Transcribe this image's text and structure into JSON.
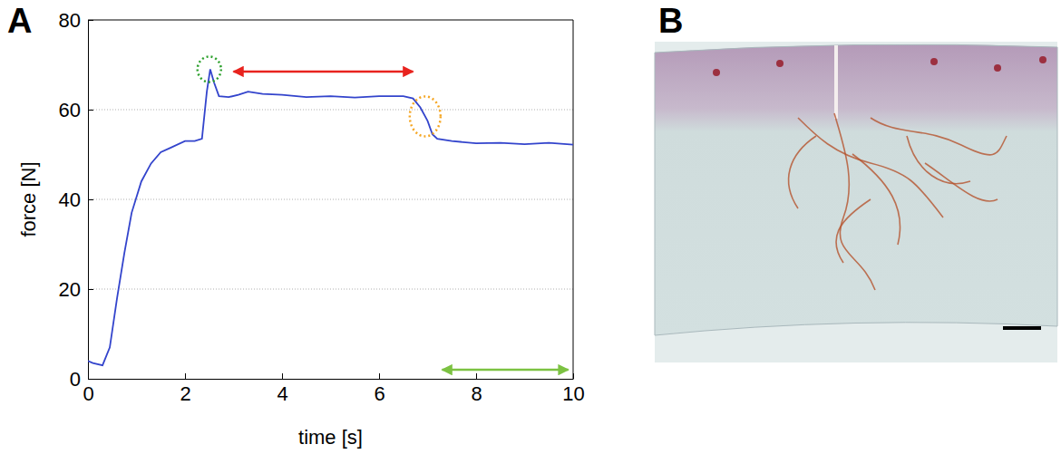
{
  "chart_data": {
    "type": "line",
    "x_label": "time [s]",
    "y_label": "force [N]",
    "x": [
      0,
      0.1,
      0.3,
      0.45,
      0.6,
      0.75,
      0.9,
      1.1,
      1.3,
      1.5,
      1.7,
      2.0,
      2.2,
      2.35,
      2.45,
      2.52,
      2.6,
      2.7,
      2.9,
      3.1,
      3.3,
      3.6,
      4.0,
      4.5,
      5.0,
      5.5,
      6.0,
      6.5,
      6.7,
      6.85,
      7.0,
      7.1,
      7.2,
      7.5,
      8.0,
      8.5,
      9.0,
      9.5,
      10.0
    ],
    "values": [
      4,
      3.5,
      3,
      7,
      18,
      28,
      37,
      44,
      48,
      50.5,
      51.5,
      53,
      53,
      53.5,
      64,
      69,
      66,
      63,
      62.8,
      63.3,
      64,
      63.5,
      63.3,
      62.8,
      63,
      62.7,
      63,
      63,
      62.5,
      60.5,
      57.5,
      54.5,
      53.5,
      53,
      52.5,
      52.6,
      52.3,
      52.6,
      52.2
    ],
    "color": "#3344cc",
    "xlim": [
      0,
      10
    ],
    "xticks": [
      0,
      2,
      4,
      6,
      8,
      10
    ],
    "ylim": [
      0,
      80
    ],
    "yticks": [
      0,
      20,
      40,
      60,
      80
    ],
    "grid": "y",
    "annotations": [
      {
        "shape": "circle",
        "x": 2.5,
        "y": 69,
        "color": "#2ca02c"
      },
      {
        "shape": "arrow",
        "x": [
          3.0,
          6.7
        ],
        "y": 68.5,
        "color": "#e8231e"
      },
      {
        "shape": "circle",
        "x": 6.95,
        "y": 58.5,
        "color": "#f5a623"
      },
      {
        "shape": "arrow",
        "x": [
          7.3,
          9.9
        ],
        "y": 2,
        "color": "#7cc242"
      }
    ]
  },
  "panels": [
    {
      "label": "A"
    },
    {
      "label": "B"
    }
  ]
}
